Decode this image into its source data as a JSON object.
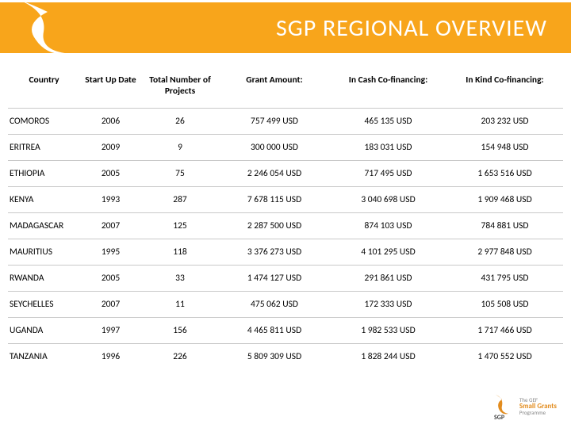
{
  "title": "SGP REGIONAL OVERVIEW",
  "colors": {
    "header_bg": "#f8a51b",
    "header_text": "#ffffff",
    "row_border": "#c9c9c9",
    "text": "#000000",
    "logo_orange": "#e28c1e",
    "logo_gray": "#888888",
    "background": "#ffffff"
  },
  "typography": {
    "title_fontsize": 30,
    "cell_fontsize": 11.5,
    "header_fontweight": 700
  },
  "table": {
    "columns": [
      "Country",
      "Start Up Date",
      "Total Number of Projects",
      "Grant Amount:",
      "In Cash Co-financing:",
      "In Kind Co-financing:"
    ],
    "rows": [
      [
        "COMOROS",
        "2006",
        "26",
        "757 499 USD",
        "465 135 USD",
        "203 232 USD"
      ],
      [
        "ERITREA",
        "2009",
        "9",
        "300 000 USD",
        "183 031 USD",
        "154 948 USD"
      ],
      [
        "ETHIOPIA",
        "2005",
        "75",
        "2 246 054 USD",
        "717 495 USD",
        "1 653 516 USD"
      ],
      [
        "KENYA",
        "1993",
        "287",
        "7 678 115 USD",
        "3 040 698 USD",
        "1 909 468 USD"
      ],
      [
        "MADAGASCAR",
        "2007",
        "125",
        "2 287 500 USD",
        "874 103 USD",
        "784 881 USD"
      ],
      [
        "MAURITIUS",
        "1995",
        "118",
        "3 376 273 USD",
        "4 101 295 USD",
        "2 977 848 USD"
      ],
      [
        "RWANDA",
        "2005",
        "33",
        "1 474 127 USD",
        "291 861 USD",
        "431 795 USD"
      ],
      [
        "SEYCHELLES",
        "2007",
        "11",
        "475 062 USD",
        "172 333 USD",
        "105 508 USD"
      ],
      [
        "UGANDA",
        "1997",
        "156",
        "4 465 811 USD",
        "1 982 533 USD",
        "1 717 466 USD"
      ],
      [
        "TANZANIA",
        "1996",
        "226",
        "5 809 309 USD",
        "1 828 244 USD",
        "1 470 552 USD"
      ]
    ]
  },
  "footer_logo": {
    "line1": "The GEF",
    "line2": "Small Grants",
    "line3": "Programme"
  }
}
